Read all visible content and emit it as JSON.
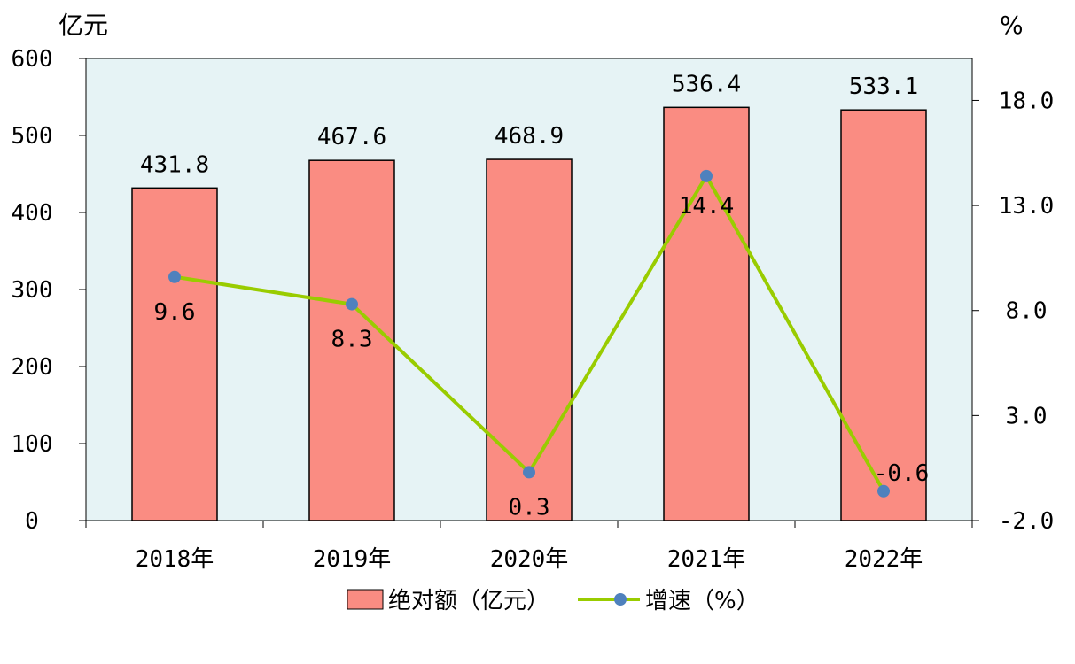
{
  "chart_data": {
    "type": "bar+line",
    "categories": [
      "2018年",
      "2019年",
      "2020年",
      "2021年",
      "2022年"
    ],
    "series": [
      {
        "name": "绝对额（亿元）",
        "type": "bar",
        "axis": "left",
        "values": [
          431.8,
          467.6,
          468.9,
          536.4,
          533.1
        ]
      },
      {
        "name": "增速（%）",
        "type": "line",
        "axis": "right",
        "values": [
          9.6,
          8.3,
          0.3,
          14.4,
          -0.6
        ]
      }
    ],
    "bar_labels": [
      "431.8",
      "467.6",
      "468.9",
      "536.4",
      "533.1"
    ],
    "line_labels": [
      "9.6",
      "8.3",
      "0.3",
      "14.4",
      "-0.6"
    ],
    "y_left": {
      "unit": "亿元",
      "ylim": [
        0,
        600
      ],
      "ticks": [
        0,
        100,
        200,
        300,
        400,
        500,
        600
      ]
    },
    "y_right": {
      "unit": "%",
      "ylim": [
        -2.0,
        20.0
      ],
      "ticks": [
        "-2.0",
        "3.0",
        "8.0",
        "13.0",
        "18.0"
      ]
    },
    "legend": {
      "position": "bottom",
      "entries": [
        "绝对额（亿元）",
        "增速（%）"
      ]
    },
    "colors": {
      "bar": "#FA8C82",
      "bar_stroke": "#000000",
      "line": "#99CC00",
      "marker": "#4F81BD",
      "plot_bg": "#E6F3F5"
    },
    "grid": false
  }
}
